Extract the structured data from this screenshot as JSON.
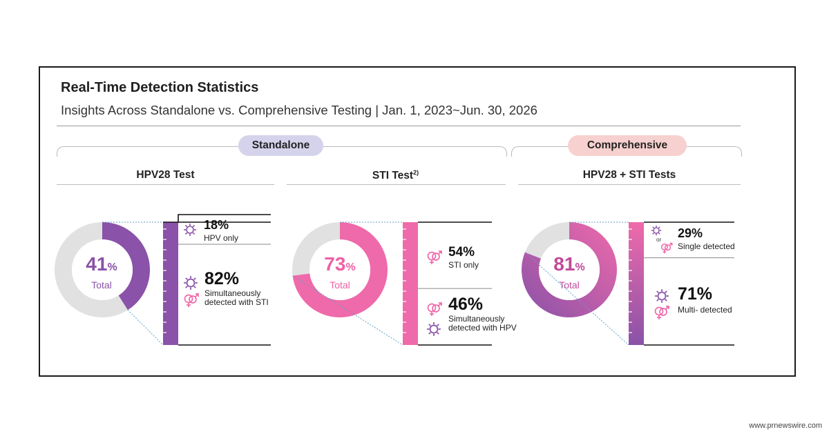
{
  "header": {
    "title": "Real-Time Detection Statistics",
    "subtitle": "Insights Across Standalone vs. Comprehensive Testing  |  Jan. 1, 2023~Jun. 30, 2026"
  },
  "groups": {
    "standalone": "Standalone",
    "comprehensive": "Comprehensive"
  },
  "colors": {
    "purple": "#8a52a8",
    "pink": "#ef6aaa",
    "grey": "#e1e1e1"
  },
  "credit": "www.prnewswire.com",
  "chart_data": [
    {
      "type": "pie",
      "title": "HPV28 Test",
      "center_value": "41",
      "center_unit": "%",
      "center_label": "Total",
      "values": [
        41,
        59
      ],
      "breakdown": [
        {
          "value": "18%",
          "label": "HPV only",
          "share": 18
        },
        {
          "value": "82%",
          "label": "Simultaneously detected with STI",
          "share": 82
        }
      ]
    },
    {
      "type": "pie",
      "title": "STI Test",
      "title_sup": "2)",
      "center_value": "73",
      "center_unit": "%",
      "center_label": "Total",
      "values": [
        73,
        27
      ],
      "breakdown": [
        {
          "value": "54%",
          "label": "STI only",
          "share": 54
        },
        {
          "value": "46%",
          "label": "Simultaneously detected with HPV",
          "share": 46
        }
      ]
    },
    {
      "type": "pie",
      "title": "HPV28 + STI Tests",
      "center_value": "81",
      "center_unit": "%",
      "center_label": "Total",
      "values": [
        81,
        19
      ],
      "breakdown": [
        {
          "value": "29%",
          "label": "Single detected",
          "share": 29,
          "icon_joiner": "or"
        },
        {
          "value": "71%",
          "label": "Multi- detected",
          "share": 71
        }
      ]
    }
  ]
}
